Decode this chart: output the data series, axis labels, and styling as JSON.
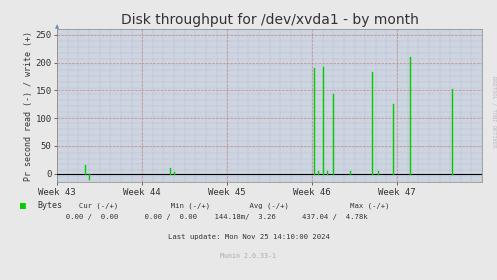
{
  "title": "Disk throughput for /dev/xvda1 - by month",
  "ylabel": "Pr second read (-) / write (+)",
  "background_color": "#e8e8e8",
  "plot_bg_color": "#ccd5e0",
  "line_color": "#00cc00",
  "zero_line_color": "#000000",
  "xtick_labels": [
    "Week 43",
    "Week 44",
    "Week 45",
    "Week 46",
    "Week 47"
  ],
  "xtick_positions": [
    0.0,
    0.2,
    0.4,
    0.6,
    0.8
  ],
  "ylim": [
    -15,
    260
  ],
  "yticks": [
    0,
    50,
    100,
    150,
    200,
    250
  ],
  "xlim": [
    0.0,
    1.0
  ],
  "legend_label": "Bytes",
  "legend_color": "#00cc00",
  "footer_text": "Last update: Mon Nov 25 14:10:00 2024",
  "munin_text": "Munin 2.0.33-1",
  "rrdtool_text": "RRDTOOL / TOBI OETIKER",
  "spikes_x": [
    0.065,
    0.075,
    0.265,
    0.275,
    0.605,
    0.615,
    0.625,
    0.635,
    0.65,
    0.69,
    0.74,
    0.755,
    0.79,
    0.83,
    0.93
  ],
  "spikes_y": [
    15,
    -10,
    10,
    3,
    190,
    5,
    193,
    5,
    143,
    5,
    183,
    5,
    126,
    210,
    152
  ],
  "stats_line1": "     Cur (-/+)            Min (-/+)         Avg (-/+)              Max (-/+)",
  "stats_line2": "  0.00 /  0.00      0.00 /  0.00    144.18m/  3.26      437.04 /  4.78k",
  "title_fontsize": 10,
  "axis_fontsize": 6.5,
  "label_fontsize": 6.0
}
